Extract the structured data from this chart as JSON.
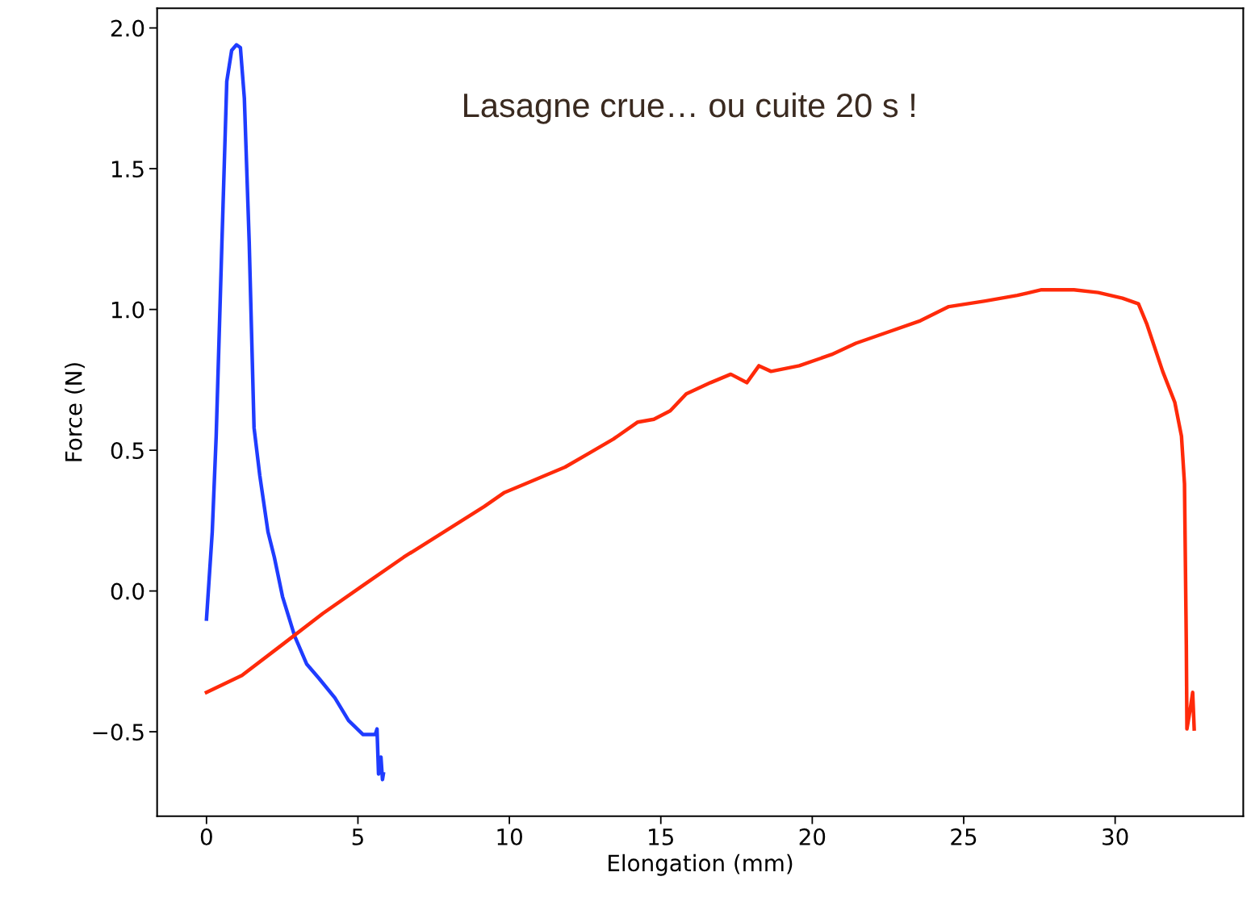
{
  "chart_data": {
    "type": "line",
    "xlabel": "Elongation (mm)",
    "ylabel": "Force (N)",
    "annotations": [
      "Lasagne crue… ou cuite 20 s !"
    ],
    "xlim": [
      -1.63,
      34.23
    ],
    "ylim": [
      -0.8,
      2.07
    ],
    "xticks": [
      0,
      5,
      10,
      15,
      20,
      25,
      30
    ],
    "yticks": [
      {
        "value": -0.5,
        "label": "−0.5"
      },
      {
        "value": 0.0,
        "label": "0.0"
      },
      {
        "value": 0.5,
        "label": "0.5"
      },
      {
        "value": 1.0,
        "label": "1.0"
      },
      {
        "value": 1.5,
        "label": "1.5"
      },
      {
        "value": 2.0,
        "label": "2.0"
      }
    ],
    "grid": false,
    "marker": "none",
    "line_style": "solid",
    "series": [
      {
        "color": "#1f3cff",
        "x": [
          0,
          0.19,
          0.32,
          0.51,
          0.67,
          0.83,
          0.99,
          1.12,
          1.25,
          1.41,
          1.57,
          1.76,
          2.03,
          2.24,
          2.51,
          2.91,
          3.31,
          3.71,
          4.24,
          4.69,
          5.17,
          5.57,
          5.63,
          5.68,
          5.76,
          5.81,
          5.84
        ],
        "values": [
          -0.1,
          0.21,
          0.55,
          1.24,
          1.81,
          1.92,
          1.94,
          1.93,
          1.75,
          1.24,
          0.58,
          0.41,
          0.21,
          0.12,
          -0.02,
          -0.16,
          -0.26,
          -0.31,
          -0.38,
          -0.46,
          -0.51,
          -0.51,
          -0.49,
          -0.65,
          -0.59,
          -0.67,
          -0.65
        ]
      },
      {
        "color": "#ff2a0a",
        "x": [
          0,
          1.17,
          2.51,
          3.84,
          5.17,
          6.51,
          7.84,
          9.17,
          9.84,
          10.51,
          11.84,
          12.64,
          13.44,
          14.24,
          14.77,
          15.31,
          15.84,
          16.64,
          17.31,
          17.84,
          18.24,
          18.64,
          19.57,
          20.64,
          21.44,
          22.51,
          23.57,
          24.51,
          25.71,
          26.77,
          27.57,
          28.64,
          29.44,
          30.24,
          30.77,
          31.04,
          31.57,
          31.97,
          32.19,
          32.29,
          32.35,
          32.37,
          32.48,
          32.56,
          32.61
        ],
        "values": [
          -0.36,
          -0.3,
          -0.19,
          -0.08,
          0.02,
          0.12,
          0.21,
          0.3,
          0.35,
          0.38,
          0.44,
          0.49,
          0.54,
          0.6,
          0.61,
          0.64,
          0.7,
          0.74,
          0.77,
          0.74,
          0.8,
          0.78,
          0.8,
          0.84,
          0.88,
          0.92,
          0.96,
          1.01,
          1.03,
          1.05,
          1.07,
          1.07,
          1.06,
          1.04,
          1.02,
          0.95,
          0.78,
          0.67,
          0.55,
          0.38,
          -0.19,
          -0.49,
          -0.42,
          -0.36,
          -0.49
        ]
      }
    ]
  }
}
